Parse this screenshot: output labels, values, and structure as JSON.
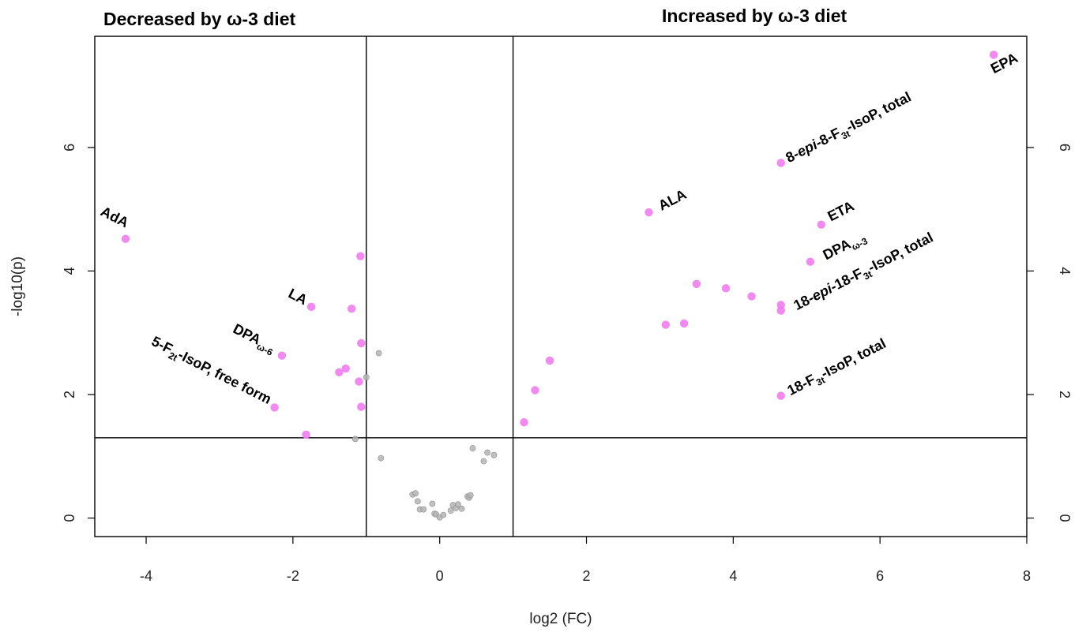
{
  "chart_data": {
    "type": "scatter",
    "xlabel": "log2 (FC)",
    "ylabel": "-log10(p)",
    "xlim": [
      -4.7,
      8.0
    ],
    "ylim": [
      -0.3,
      7.8
    ],
    "x_ticks": [
      -4,
      -2,
      0,
      2,
      4,
      6,
      8
    ],
    "y_ticks": [
      0,
      2,
      4,
      6
    ],
    "region_titles": {
      "left": "Decreased by ω-3 diet",
      "right": "Increased by ω-3 diet"
    },
    "thresholds": {
      "x_low": -1,
      "x_high": 1,
      "y": 1.3
    },
    "colors": {
      "significant": "#f07cf0",
      "nonsignificant": "#b4b4b4"
    },
    "series": [
      {
        "points": [
          {
            "x": -4.28,
            "y": 4.52,
            "label": "AdA"
          },
          {
            "x": -1.75,
            "y": 3.42,
            "label": "LA"
          },
          {
            "x": -2.15,
            "y": 2.63,
            "label": "DPA",
            "label_sub": "ω-6"
          },
          {
            "x": -2.25,
            "y": 1.79,
            "label": "5-F",
            "label_sub": "2t",
            "label_rest": "-IsoP, free form"
          },
          {
            "x": -1.82,
            "y": 1.35
          },
          {
            "x": -1.08,
            "y": 4.24
          },
          {
            "x": -1.2,
            "y": 3.39
          },
          {
            "x": -1.07,
            "y": 2.83
          },
          {
            "x": -1.37,
            "y": 2.36
          },
          {
            "x": -1.28,
            "y": 2.42
          },
          {
            "x": -1.1,
            "y": 2.21
          },
          {
            "x": -1.07,
            "y": 1.8
          },
          {
            "x": 1.15,
            "y": 1.55
          },
          {
            "x": 1.3,
            "y": 2.07
          },
          {
            "x": 1.5,
            "y": 2.55
          },
          {
            "x": 2.85,
            "y": 4.95,
            "label": "ALA"
          },
          {
            "x": 3.08,
            "y": 3.13
          },
          {
            "x": 3.33,
            "y": 3.15
          },
          {
            "x": 3.5,
            "y": 3.79
          },
          {
            "x": 3.9,
            "y": 3.72
          },
          {
            "x": 4.25,
            "y": 3.59
          },
          {
            "x": 4.65,
            "y": 3.45
          },
          {
            "x": 4.65,
            "y": 3.36,
            "label": "18-",
            "label_ital": "epi",
            "label_rest": "-18-F",
            "label_sub": "3t",
            "label_rest2": "-IsoP, total"
          },
          {
            "x": 4.65,
            "y": 5.75,
            "label": "8-",
            "label_ital": "epi",
            "label_rest": "-8-F",
            "label_sub": "3t",
            "label_rest2": "-IsoP, total"
          },
          {
            "x": 4.65,
            "y": 1.98,
            "label": "18-F",
            "label_sub": "3t",
            "label_rest": "-IsoP, total"
          },
          {
            "x": 5.2,
            "y": 4.75,
            "label": "ETA"
          },
          {
            "x": 5.05,
            "y": 4.15,
            "label": "DPA",
            "label_sub": "ω-3"
          },
          {
            "x": 7.55,
            "y": 7.5,
            "label": "EPA"
          }
        ]
      },
      {
        "points": [
          {
            "x": -0.83,
            "y": 2.67
          },
          {
            "x": -1.0,
            "y": 2.28
          },
          {
            "x": -1.15,
            "y": 1.28
          },
          {
            "x": -0.8,
            "y": 0.97
          },
          {
            "x": -0.37,
            "y": 0.38
          },
          {
            "x": -0.33,
            "y": 0.4
          },
          {
            "x": -0.3,
            "y": 0.27
          },
          {
            "x": -0.27,
            "y": 0.14
          },
          {
            "x": -0.22,
            "y": 0.14
          },
          {
            "x": -0.1,
            "y": 0.23
          },
          {
            "x": -0.07,
            "y": 0.07
          },
          {
            "x": -0.05,
            "y": 0.06
          },
          {
            "x": 0.0,
            "y": 0.01
          },
          {
            "x": 0.05,
            "y": 0.05
          },
          {
            "x": 0.15,
            "y": 0.12
          },
          {
            "x": 0.18,
            "y": 0.21
          },
          {
            "x": 0.22,
            "y": 0.16
          },
          {
            "x": 0.25,
            "y": 0.22
          },
          {
            "x": 0.3,
            "y": 0.15
          },
          {
            "x": 0.38,
            "y": 0.35
          },
          {
            "x": 0.4,
            "y": 0.33
          },
          {
            "x": 0.42,
            "y": 0.37
          },
          {
            "x": 0.45,
            "y": 1.13
          },
          {
            "x": 0.6,
            "y": 0.92
          },
          {
            "x": 0.65,
            "y": 1.06
          },
          {
            "x": 0.74,
            "y": 1.02
          }
        ]
      }
    ]
  }
}
